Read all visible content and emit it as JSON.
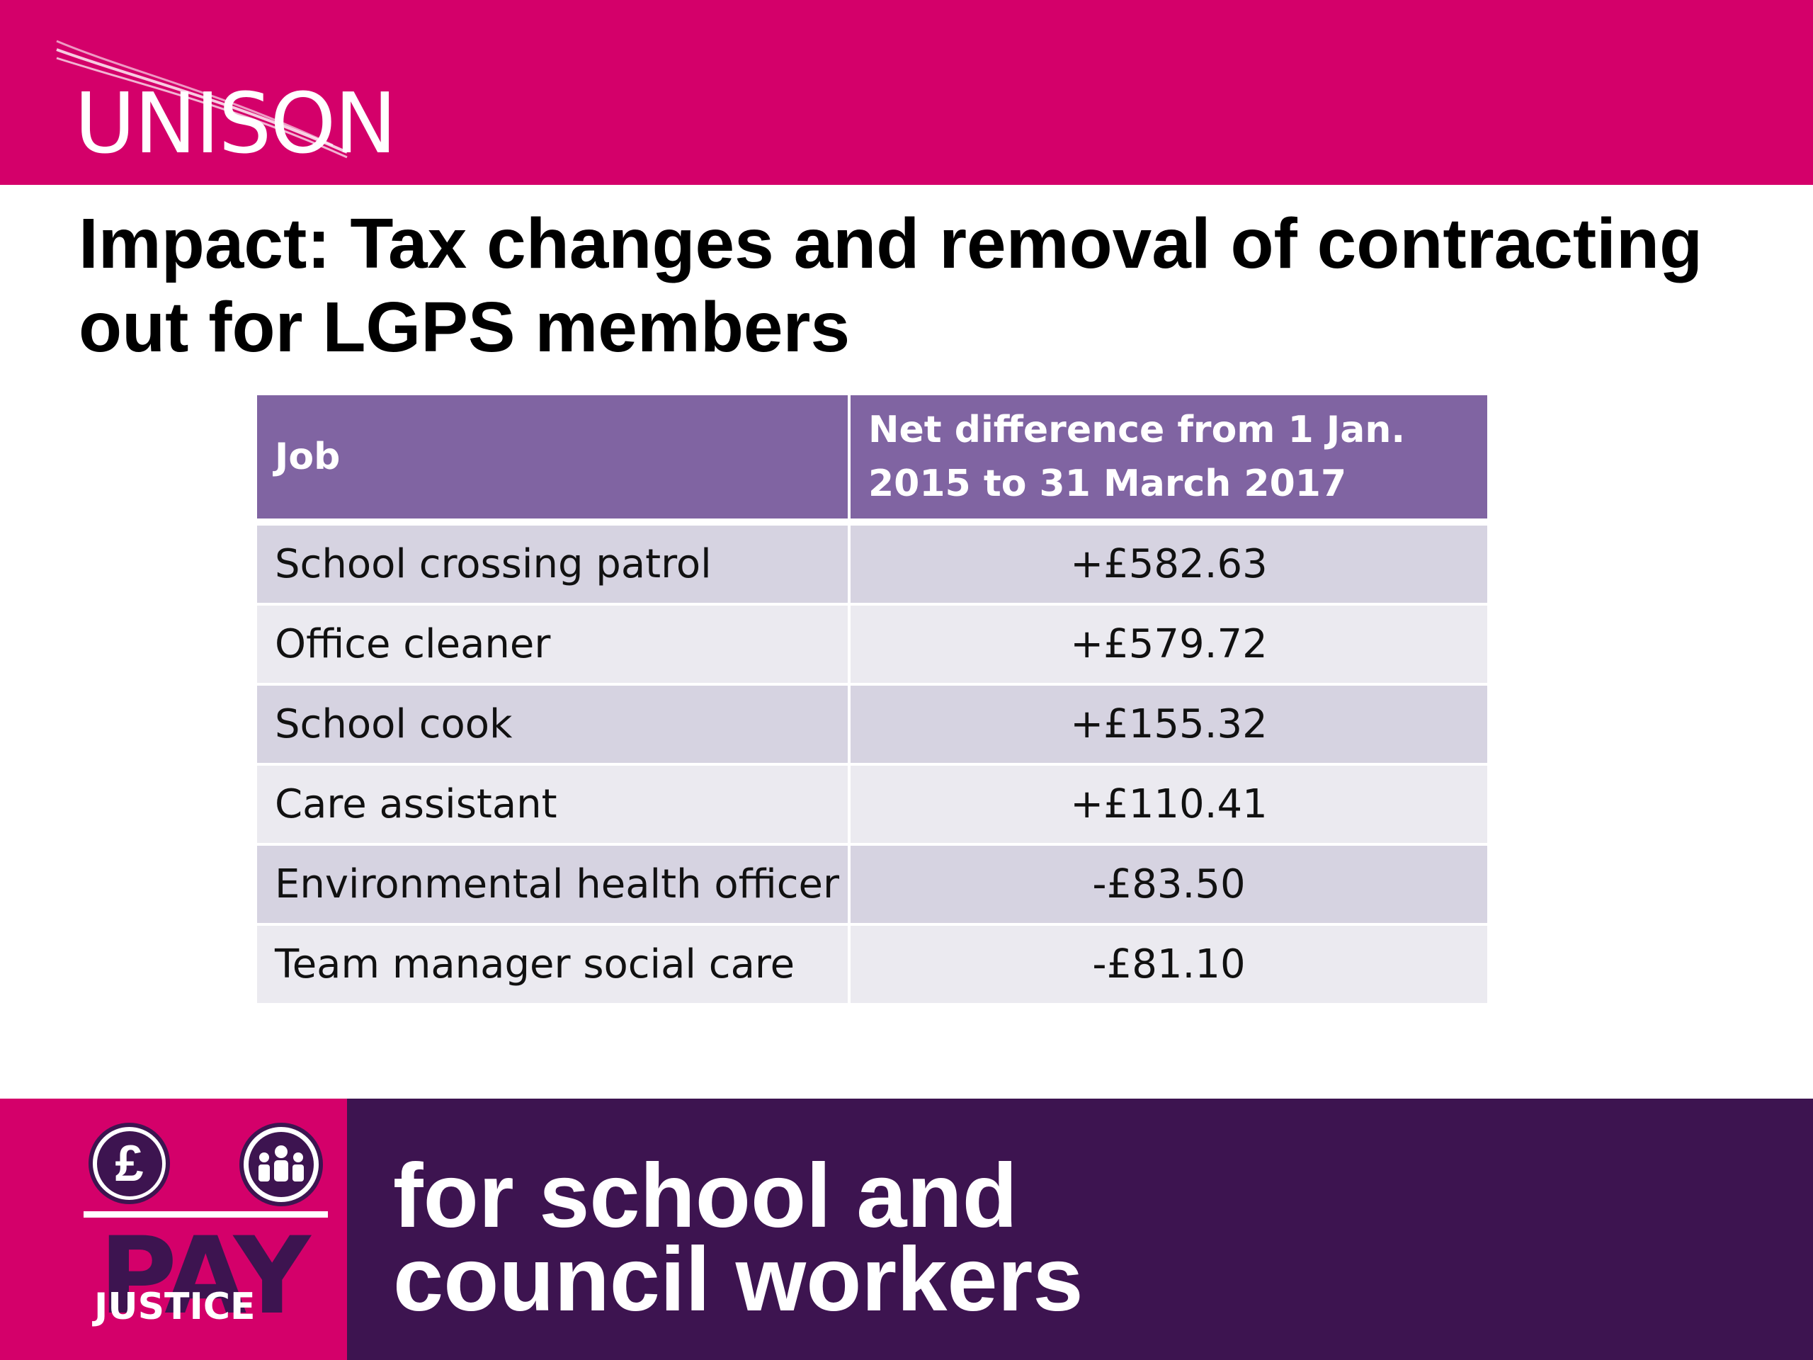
{
  "header": {
    "logo": "UNISON"
  },
  "title": "Impact: Tax changes and removal of contracting out for LGPS members",
  "table": {
    "columns": [
      "Job",
      "Net difference from 1 Jan. 2015 to 31 March 2017"
    ],
    "rows": [
      [
        "School crossing patrol",
        "+£582.63"
      ],
      [
        "Office cleaner",
        "+£579.72"
      ],
      [
        "School cook",
        "+£155.32"
      ],
      [
        "Care assistant",
        "+£110.41"
      ],
      [
        "Environmental health officer",
        "-£83.50"
      ],
      [
        "Team manager social care",
        "-£81.10"
      ]
    ]
  },
  "footer": {
    "badge": {
      "pound": "£",
      "pay": "PAY",
      "justice": "JUSTICE"
    },
    "lines": [
      "for school and",
      "council workers"
    ]
  }
}
